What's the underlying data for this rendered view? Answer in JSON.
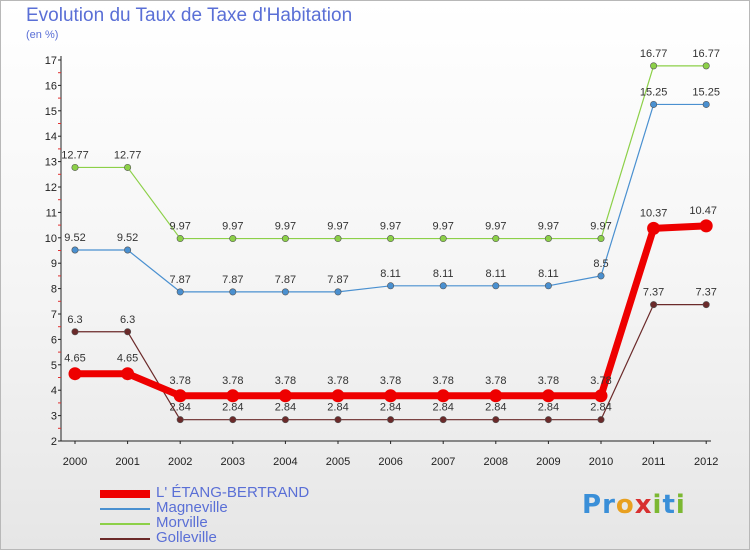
{
  "title": "Evolution du Taux de Taxe d'Habitation",
  "subtitle": "(en %)",
  "logo_text": "Proxiti",
  "chart_data": {
    "type": "line",
    "title": "Evolution du Taux de Taxe d'Habitation",
    "ylabel": "(en %)",
    "xlabel": "",
    "ylim": [
      2,
      17
    ],
    "yticks": [
      "2",
      "3",
      "4",
      "5",
      "6",
      "7",
      "8",
      "9",
      "10",
      "11",
      "12",
      "13",
      "14",
      "15",
      "16",
      "17"
    ],
    "categories": [
      "2000",
      "2001",
      "2002",
      "2003",
      "2004",
      "2005",
      "2006",
      "2007",
      "2008",
      "2009",
      "2010",
      "2011",
      "2012"
    ],
    "grid": false,
    "legend_position": "bottom-left",
    "series": [
      {
        "name": "Morville",
        "color": "#8cd048",
        "values": [
          12.77,
          12.77,
          9.97,
          9.97,
          9.97,
          9.97,
          9.97,
          9.97,
          9.97,
          9.97,
          9.97,
          16.77,
          16.77
        ],
        "labels": [
          "12.77",
          "12.77",
          "9.97",
          "9.97",
          "9.97",
          "9.97",
          "9.97",
          "9.97",
          "9.97",
          "9.97",
          "9.97",
          "16.77",
          "16.77"
        ]
      },
      {
        "name": "Magneville",
        "color": "#4a90d0",
        "values": [
          9.52,
          9.52,
          7.87,
          7.87,
          7.87,
          7.87,
          8.11,
          8.11,
          8.11,
          8.11,
          8.5,
          15.25,
          15.25
        ],
        "labels": [
          "9.52",
          "9.52",
          "7.87",
          "7.87",
          "7.87",
          "7.87",
          "8.11",
          "8.11",
          "8.11",
          "8.11",
          "8.5",
          "15.25",
          "15.25"
        ]
      },
      {
        "name": "Golleville",
        "color": "#6b2a2a",
        "values": [
          6.3,
          6.3,
          2.84,
          2.84,
          2.84,
          2.84,
          2.84,
          2.84,
          2.84,
          2.84,
          2.84,
          7.37,
          7.37
        ],
        "labels": [
          "6.3",
          "6.3",
          "2.84",
          "2.84",
          "2.84",
          "2.84",
          "2.84",
          "2.84",
          "2.84",
          "2.84",
          "2.84",
          "7.37",
          "7.37"
        ]
      },
      {
        "name": "L' ÉTANG-BERTRAND",
        "color": "#ee0000",
        "values": [
          4.65,
          4.65,
          3.78,
          3.78,
          3.78,
          3.78,
          3.78,
          3.78,
          3.78,
          3.78,
          3.78,
          10.37,
          10.47
        ],
        "labels": [
          "4.65",
          "4.65",
          "3.78",
          "3.78",
          "3.78",
          "3.78",
          "3.78",
          "3.78",
          "3.78",
          "3.78",
          "3.78",
          "10.37",
          "10.47"
        ]
      }
    ],
    "legend": [
      {
        "name": "L' ÉTANG-BERTRAND",
        "color": "#ee0000"
      },
      {
        "name": "Magneville",
        "color": "#4a90d0"
      },
      {
        "name": "Morville",
        "color": "#8cd048"
      },
      {
        "name": "Golleville",
        "color": "#6b2a2a"
      }
    ]
  }
}
